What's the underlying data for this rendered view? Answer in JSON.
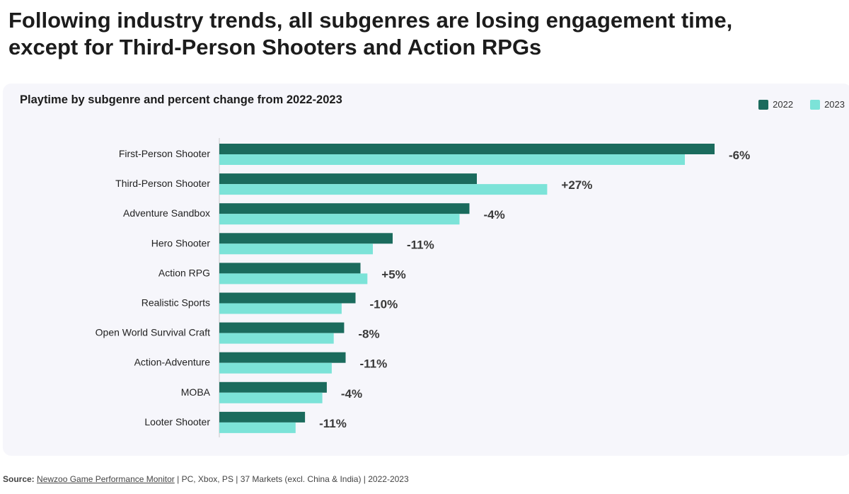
{
  "headline": "Following industry trends, all subgenres are losing engagement time, except for Third-Person Shooters and Action RPGs",
  "chart_data": {
    "type": "bar",
    "orientation": "horizontal",
    "title": "Playtime by subgenre and percent change from 2022-2023",
    "categories": [
      "First-Person Shooter",
      "Third-Person Shooter",
      "Adventure Sandbox",
      "Hero Shooter",
      "Action RPG",
      "Realistic Sports",
      "Open World Survival Craft",
      "Action-Adventure",
      "MOBA",
      "Looter Shooter"
    ],
    "series": [
      {
        "name": "2022",
        "color": "#1b6b5d",
        "values": [
          100,
          52,
          50.5,
          35,
          28.5,
          27.5,
          25.2,
          25.5,
          21.7,
          17.3
        ]
      },
      {
        "name": "2023",
        "color": "#7ce3d8",
        "values": [
          94,
          66.2,
          48.5,
          31,
          29.9,
          24.7,
          23.1,
          22.7,
          20.8,
          15.4
        ]
      }
    ],
    "annotations": [
      "-6%",
      "+27%",
      "-4%",
      "-11%",
      "+5%",
      "-10%",
      "-8%",
      "-11%",
      "-4%",
      "-11%"
    ],
    "xlim": [
      0,
      100
    ],
    "legend_position": "top-right"
  },
  "source": {
    "label": "Source:",
    "link_text": "Newzoo Game Performance Monitor",
    "rest": "| PC, Xbox, PS | 37 Markets (excl. China & India) | 2022-2023"
  }
}
